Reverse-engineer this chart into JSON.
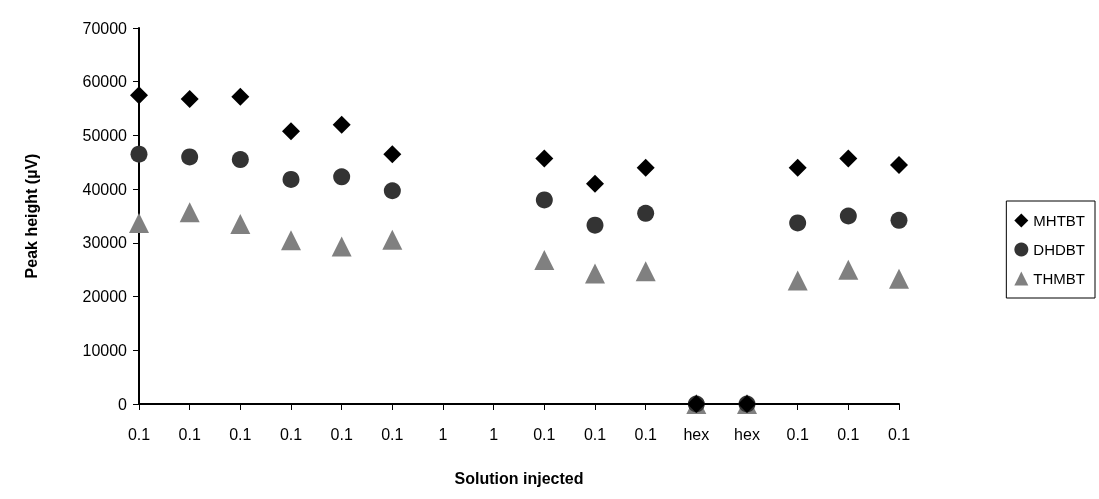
{
  "chart_data": {
    "type": "scatter",
    "xlabel": "Solution injected",
    "ylabel": "Peak height (µV)",
    "categories": [
      "0.1",
      "0.1",
      "0.1",
      "0.1",
      "0.1",
      "0.1",
      "1",
      "1",
      "0.1",
      "0.1",
      "0.1",
      "hex",
      "hex",
      "0.1",
      "0.1",
      "0.1"
    ],
    "series": [
      {
        "name": "MHTBT",
        "color": "#000000",
        "marker": "diamond",
        "values": [
          57500,
          56800,
          57200,
          50800,
          52000,
          46500,
          null,
          null,
          45700,
          41000,
          44000,
          0,
          0,
          44000,
          45700,
          44500
        ]
      },
      {
        "name": "DHDBT",
        "color": "#333333",
        "marker": "circle",
        "values": [
          46500,
          46000,
          45500,
          41800,
          42300,
          39700,
          null,
          null,
          38000,
          33300,
          35500,
          0,
          0,
          33700,
          35000,
          34200
        ]
      },
      {
        "name": "THMBT",
        "color": "#808080",
        "marker": "triangle",
        "values": [
          33700,
          35700,
          33500,
          30500,
          29300,
          30600,
          null,
          null,
          26800,
          24300,
          24700,
          0,
          0,
          23000,
          25000,
          23300
        ]
      }
    ],
    "ylim": [
      0,
      70000
    ],
    "yticks": [
      0,
      10000,
      20000,
      30000,
      40000,
      50000,
      60000,
      70000
    ],
    "grid": false,
    "legend": "right"
  }
}
